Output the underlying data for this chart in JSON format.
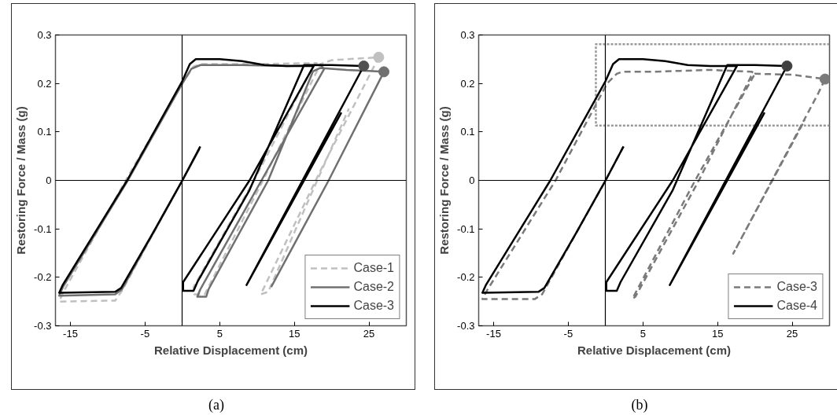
{
  "chart_data": [
    {
      "type": "line",
      "xlabel": "Relative Displacement (cm)",
      "ylabel": "Restoring Force / Mass (g)",
      "xlim": [
        -17,
        30
      ],
      "ylim": [
        -0.3,
        0.3
      ],
      "xticks": [
        -15,
        -5,
        5,
        15,
        25
      ],
      "yticks": [
        -0.3,
        -0.2,
        -0.1,
        0,
        0.1,
        0.2,
        0.3
      ],
      "legend": "bottom right",
      "annotations": [
        "(a)"
      ],
      "series": [
        {
          "name": "Case-1",
          "color": "#c0c0c0",
          "line_style": "dashed",
          "x": [
            2.4,
            0,
            -8.1,
            -9,
            -16.5,
            -16,
            -7.6,
            0,
            1.5,
            2.5,
            10,
            18,
            17.5,
            9.6,
            1.5,
            1.6,
            3,
            10.8,
            18.5,
            20,
            26.3,
            18.5,
            10.5,
            11.5,
            22.3
          ],
          "values": [
            0.07,
            0,
            -0.228,
            -0.248,
            -0.25,
            -0.232,
            0,
            0.2,
            0.235,
            0.24,
            0.24,
            0.242,
            0.235,
            0,
            -0.22,
            -0.235,
            -0.235,
            0,
            0.24,
            0.248,
            0.254,
            0.02,
            -0.235,
            -0.23,
            0.148
          ]
        },
        {
          "name": "Case-2",
          "color": "#707070",
          "line_style": "solid",
          "x": [
            2.3,
            0,
            -8.1,
            -9,
            -16.5,
            -16,
            -7.3,
            0,
            1.2,
            2.4,
            8,
            14,
            18.5,
            19,
            10.6,
            2.4,
            2,
            3.2,
            3.5,
            11.5,
            17.5,
            18.5,
            22,
            25,
            27,
            19.6,
            11.9
          ],
          "values": [
            0.065,
            0,
            -0.225,
            -0.235,
            -0.238,
            -0.22,
            0,
            0.2,
            0.23,
            0.238,
            0.238,
            0.236,
            0.238,
            0.23,
            0,
            -0.225,
            -0.24,
            -0.24,
            -0.225,
            0,
            0.225,
            0.232,
            0.228,
            0.226,
            0.224,
            0,
            -0.22
          ]
        },
        {
          "name": "Case-3",
          "color": "#000000",
          "line_style": "solid",
          "x": [
            2.4,
            0,
            -4,
            -8.2,
            -9,
            -16.5,
            -16,
            -7.4,
            0,
            1,
            1.8,
            5,
            8,
            11,
            14,
            17.6,
            9,
            0.1,
            0.1,
            1.5,
            2,
            9,
            16.3,
            20,
            24.3,
            8.6,
            21.3
          ],
          "values": [
            0.07,
            0,
            -0.11,
            -0.222,
            -0.23,
            -0.232,
            -0.215,
            0,
            0.205,
            0.24,
            0.25,
            0.25,
            0.246,
            0.238,
            0.236,
            0.236,
            0,
            -0.21,
            -0.228,
            -0.228,
            -0.21,
            -0.02,
            0.238,
            0.238,
            0.236,
            -0.216,
            0.14
          ]
        },
        {
          "type": "scatter",
          "marker": "circle",
          "x": [
            24.3,
            26.3,
            27
          ],
          "values": [
            0.236,
            0.254,
            0.224
          ],
          "colors": [
            "#505050",
            "#c0c0c0",
            "#707070"
          ]
        }
      ]
    },
    {
      "type": "line",
      "xlabel": "Relative Displacement (cm)",
      "ylabel": "Restoring Force / Mass (g)",
      "xlim": [
        -17,
        30
      ],
      "ylim": [
        -0.3,
        0.3
      ],
      "xticks": [
        -15,
        -5,
        5,
        15,
        25
      ],
      "yticks": [
        -0.3,
        -0.2,
        -0.1,
        0,
        0.1,
        0.2,
        0.3
      ],
      "legend": "bottom right",
      "annotations": [
        "(b)"
      ],
      "series": [
        {
          "color": "#999999",
          "line_style": "dotted",
          "x": [
            30,
            -1.3,
            -1.3,
            30
          ],
          "values": [
            0.281,
            0.281,
            0.113,
            0.113
          ]
        },
        {
          "name": "Case-3",
          "color": "#7a7a7a",
          "line_style": "dashed",
          "x": [
            2.4,
            0,
            -8.5,
            -9.5,
            -16.5,
            -16,
            -6.7,
            -1,
            0.2,
            1.5,
            2.2,
            6,
            10,
            14,
            19.6,
            20,
            12,
            3.6,
            4,
            12.5,
            19.5,
            20,
            25,
            29.4,
            28.5,
            17.1,
            26.7
          ],
          "values": [
            0.07,
            0,
            -0.235,
            -0.245,
            -0.245,
            -0.23,
            0,
            0.165,
            0.2,
            0.22,
            0.224,
            0.224,
            0.226,
            0.228,
            0.224,
            0.22,
            0,
            -0.244,
            -0.24,
            0,
            0.215,
            0.22,
            0.218,
            0.209,
            0.18,
            -0.151,
            0.125
          ]
        },
        {
          "name": "Case-4",
          "color": "#000000",
          "line_style": "solid",
          "x": [
            2.4,
            0,
            -4,
            -8.2,
            -9,
            -16.5,
            -16,
            -7.4,
            0,
            1,
            1.8,
            5,
            8,
            11,
            14,
            17.6,
            9,
            0.1,
            0.1,
            1.5,
            2,
            9,
            16.3,
            20,
            24.3,
            8.6,
            21.3
          ],
          "values": [
            0.07,
            0,
            -0.11,
            -0.222,
            -0.23,
            -0.232,
            -0.215,
            0,
            0.205,
            0.24,
            0.25,
            0.25,
            0.246,
            0.238,
            0.236,
            0.236,
            0,
            -0.21,
            -0.228,
            -0.228,
            -0.21,
            -0.02,
            0.238,
            0.238,
            0.236,
            -0.216,
            0.14
          ]
        },
        {
          "type": "scatter",
          "marker": "circle",
          "x": [
            24.3,
            29.4
          ],
          "values": [
            0.236,
            0.209
          ],
          "colors": [
            "#404040",
            "#7a7a7a"
          ]
        }
      ]
    }
  ]
}
